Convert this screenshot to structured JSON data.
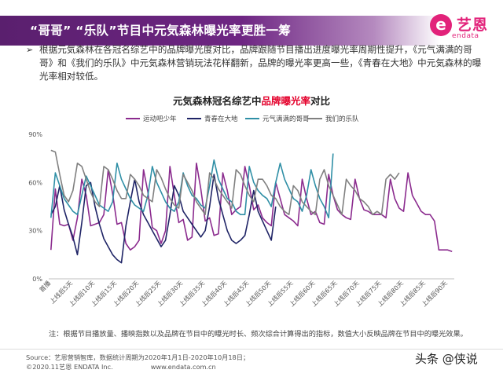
{
  "slide": {
    "title": "“哥哥” “乐队”节目中元気森林曝光率更胜一筹",
    "bullet": "根据元気森林在各冠名综艺中的品牌曝光度对比，品牌跟随节目播出进度曝光率周期性提升，《元气满满的哥哥》和《我们的乐队》中元気森林营销玩法花样翻新，品牌的曝光率更高一些，《青春在大地》中元気森林的曝光率相对较低。",
    "chart_title_pre": "元気森林冠名综艺中",
    "chart_title_highlight": "品牌曝光率",
    "chart_title_post": "对比",
    "note": "注：根据节目播放量、播映指数以及品牌在节目中的曝光时长、频次综合计算得出的指标，数值大小反映品牌在节目中的曝光效果。",
    "source_line1": "Source：艺恩营销智库，数据统计周期为2020年1月1日-2020年10月18日；",
    "source_line2": "©2020.11艺恩 ENDATA Inc.",
    "website": "www.endata.com.cn",
    "watermark": "头条 @侠说"
  },
  "logo": {
    "mark": "e",
    "name_cn": "艺恩",
    "name_en": "endata",
    "color": "#e2227a"
  },
  "colors": {
    "title_bar": "#6e2683",
    "highlight": "#e4002b"
  },
  "chart_data": {
    "type": "line",
    "title": "元気森林冠名综艺中品牌曝光率对比",
    "xlabel": "",
    "ylabel": "",
    "ylim": [
      0,
      90
    ],
    "y_ticks": [
      0,
      30,
      60,
      90
    ],
    "y_tick_labels": [
      "0%",
      "30%",
      "60%",
      "90%"
    ],
    "legend_position": "top",
    "grid": false,
    "x_count": 92,
    "x_tick_indices": [
      0,
      5,
      10,
      15,
      20,
      25,
      30,
      35,
      40,
      45,
      50,
      55,
      60,
      65,
      70,
      75,
      80,
      85,
      90
    ],
    "x_tick_labels": [
      "首播",
      "上线后5天",
      "上线后10天",
      "上线后15天",
      "上线后20天",
      "上线后25天",
      "上线后30天",
      "上线后35天",
      "上线后40天",
      "上线后45天",
      "上线后50天",
      "上线后55天",
      "上线后60天",
      "上线后65天",
      "上线后70天",
      "上线后75天",
      "上线后80天",
      "上线后85天",
      "上线后90天"
    ],
    "series": [
      {
        "name": "运动吧少年",
        "color": "#8b2b8e",
        "values": [
          18,
          56,
          34,
          33,
          34,
          24,
          38,
          62,
          52,
          33,
          34,
          35,
          40,
          68,
          53,
          34,
          35,
          22,
          18,
          20,
          24,
          68,
          54,
          32,
          30,
          22,
          30,
          70,
          52,
          35,
          37,
          24,
          26,
          72,
          56,
          36,
          38,
          27,
          28,
          66,
          55,
          40,
          43,
          45,
          70,
          58,
          43,
          46,
          38,
          35,
          33,
          60,
          50,
          40,
          38,
          36,
          33,
          62,
          50,
          40,
          42,
          35,
          34,
          65,
          52,
          43,
          40,
          38,
          37,
          62,
          50,
          43,
          42,
          40,
          40,
          40,
          38,
          62,
          50,
          44,
          42,
          66,
          52,
          47,
          42,
          40,
          40,
          36,
          18,
          18,
          18,
          17
        ]
      },
      {
        "name": "青春在大地",
        "color": "#1f2466",
        "values": [
          40,
          45,
          58,
          43,
          34,
          26,
          15,
          35,
          58,
          60,
          45,
          34,
          25,
          20,
          15,
          12,
          10,
          33,
          48,
          62,
          48,
          40,
          35,
          30,
          25,
          20,
          24,
          40,
          58,
          52,
          42,
          38,
          34,
          30,
          26,
          30,
          45,
          65,
          50,
          40,
          30,
          24,
          22,
          24,
          27,
          40,
          55,
          42,
          36,
          30,
          24,
          45
        ]
      },
      {
        "name": "元气满满的哥哥",
        "color": "#2f8fa6",
        "values": [
          38,
          66,
          58,
          50,
          46,
          42,
          40,
          52,
          64,
          58,
          52,
          46,
          44,
          42,
          48,
          72,
          62,
          56,
          50,
          46,
          44,
          42,
          52,
          70,
          60,
          54,
          48,
          44,
          42,
          48,
          66,
          58,
          52,
          50,
          46,
          44,
          58,
          74,
          62,
          56,
          50,
          48,
          42,
          40,
          40,
          70,
          60,
          55,
          52,
          50,
          45,
          60,
          72,
          62,
          56,
          50,
          48,
          42,
          52,
          68,
          58,
          50,
          45,
          38,
          78
        ]
      },
      {
        "name": "我们的乐队",
        "color": "#808080",
        "values": [
          80,
          79,
          65,
          52,
          48,
          55,
          72,
          70,
          62,
          54,
          48,
          45,
          70,
          68,
          62,
          55,
          50,
          50,
          65,
          62,
          58,
          52,
          50,
          48,
          68,
          63,
          56,
          50,
          46,
          44,
          65,
          60,
          55,
          48,
          44,
          40,
          66,
          62,
          56,
          52,
          48,
          44,
          68,
          65,
          58,
          52,
          48,
          62,
          62,
          58,
          52,
          50,
          45,
          42,
          40,
          58,
          55,
          48,
          45,
          42,
          40,
          62,
          68,
          58,
          52,
          46,
          40,
          62,
          58,
          55,
          50,
          48,
          45,
          40,
          42,
          40,
          62,
          65,
          62,
          66
        ]
      }
    ]
  }
}
